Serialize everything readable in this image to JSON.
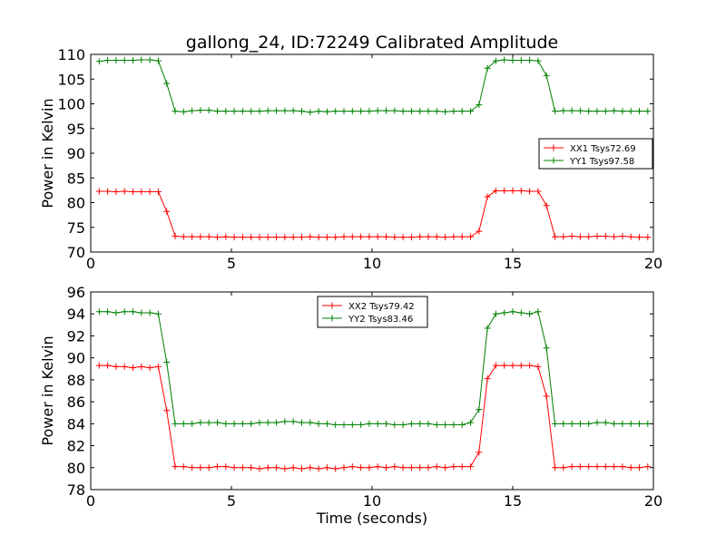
{
  "chart_data": [
    {
      "type": "line",
      "title": "gallong_24, ID:72249 Calibrated Amplitude",
      "xlabel": "",
      "ylabel": "Power in Kelvin",
      "xlim": [
        0,
        20
      ],
      "ylim": [
        70,
        110
      ],
      "xticks": [
        "0",
        "5",
        "10",
        "15",
        "20"
      ],
      "yticks": [
        "70",
        "75",
        "80",
        "85",
        "90",
        "95",
        "100",
        "105",
        "110"
      ],
      "legend_position": "right",
      "x": [
        0.3,
        0.6,
        0.9,
        1.2,
        1.5,
        1.8,
        2.1,
        2.4,
        2.7,
        3.0,
        3.3,
        3.6,
        3.9,
        4.2,
        4.5,
        4.8,
        5.1,
        5.4,
        5.7,
        6.0,
        6.3,
        6.6,
        6.9,
        7.2,
        7.5,
        7.8,
        8.1,
        8.4,
        8.7,
        9.0,
        9.3,
        9.6,
        9.9,
        10.2,
        10.5,
        10.8,
        11.1,
        11.4,
        11.7,
        12.0,
        12.3,
        12.6,
        12.9,
        13.2,
        13.5,
        13.8,
        14.1,
        14.4,
        14.7,
        15.0,
        15.3,
        15.6,
        15.9,
        16.2,
        16.5,
        16.8,
        17.1,
        17.4,
        17.7,
        18.0,
        18.3,
        18.6,
        18.9,
        19.2,
        19.5,
        19.8
      ],
      "series": [
        {
          "name": "XX1 Tsys72.69",
          "color": "#ff0000",
          "values": [
            82.3,
            82.3,
            82.2,
            82.3,
            82.2,
            82.2,
            82.2,
            82.2,
            78.2,
            73.2,
            73.1,
            73.1,
            73.1,
            73.1,
            73.0,
            73.1,
            73.0,
            73.0,
            73.0,
            73.0,
            73.0,
            73.0,
            73.0,
            73.0,
            73.0,
            73.1,
            73.0,
            73.0,
            73.0,
            73.1,
            73.1,
            73.1,
            73.1,
            73.1,
            73.1,
            73.0,
            73.0,
            73.0,
            73.1,
            73.1,
            73.1,
            73.0,
            73.1,
            73.1,
            73.1,
            74.2,
            81.2,
            82.4,
            82.4,
            82.4,
            82.4,
            82.3,
            82.3,
            79.4,
            73.1,
            73.1,
            73.2,
            73.1,
            73.1,
            73.2,
            73.2,
            73.1,
            73.2,
            73.1,
            73.0,
            73.0
          ]
        },
        {
          "name": "YY1 Tsys97.58",
          "color": "#008000",
          "values": [
            108.6,
            108.8,
            108.8,
            108.8,
            108.8,
            108.9,
            108.9,
            108.7,
            104.1,
            98.5,
            98.4,
            98.6,
            98.7,
            98.7,
            98.5,
            98.5,
            98.5,
            98.5,
            98.5,
            98.5,
            98.6,
            98.6,
            98.6,
            98.6,
            98.5,
            98.3,
            98.5,
            98.4,
            98.5,
            98.5,
            98.5,
            98.5,
            98.5,
            98.6,
            98.6,
            98.6,
            98.5,
            98.5,
            98.5,
            98.5,
            98.5,
            98.4,
            98.5,
            98.5,
            98.5,
            99.8,
            107.2,
            108.7,
            108.9,
            108.8,
            108.8,
            108.8,
            108.7,
            105.7,
            98.5,
            98.6,
            98.6,
            98.6,
            98.5,
            98.5,
            98.5,
            98.6,
            98.5,
            98.5,
            98.5,
            98.5
          ]
        }
      ]
    },
    {
      "type": "line",
      "title": "",
      "xlabel": "Time (seconds)",
      "ylabel": "Power in Kelvin",
      "xlim": [
        0,
        20
      ],
      "ylim": [
        78,
        96
      ],
      "xticks": [
        "0",
        "5",
        "10",
        "15",
        "20"
      ],
      "yticks": [
        "78",
        "80",
        "82",
        "84",
        "86",
        "88",
        "90",
        "92",
        "94",
        "96"
      ],
      "legend_position": "top-center",
      "x": [
        0.3,
        0.6,
        0.9,
        1.2,
        1.5,
        1.8,
        2.1,
        2.4,
        2.7,
        3.0,
        3.3,
        3.6,
        3.9,
        4.2,
        4.5,
        4.8,
        5.1,
        5.4,
        5.7,
        6.0,
        6.3,
        6.6,
        6.9,
        7.2,
        7.5,
        7.8,
        8.1,
        8.4,
        8.7,
        9.0,
        9.3,
        9.6,
        9.9,
        10.2,
        10.5,
        10.8,
        11.1,
        11.4,
        11.7,
        12.0,
        12.3,
        12.6,
        12.9,
        13.2,
        13.5,
        13.8,
        14.1,
        14.4,
        14.7,
        15.0,
        15.3,
        15.6,
        15.9,
        16.2,
        16.5,
        16.8,
        17.1,
        17.4,
        17.7,
        18.0,
        18.3,
        18.6,
        18.9,
        19.2,
        19.5,
        19.8
      ],
      "series": [
        {
          "name": "XX2 Tsys79.42",
          "color": "#ff0000",
          "values": [
            89.3,
            89.3,
            89.2,
            89.2,
            89.1,
            89.2,
            89.1,
            89.2,
            85.2,
            80.1,
            80.1,
            80.0,
            80.0,
            80.0,
            80.1,
            80.1,
            80.0,
            80.0,
            80.0,
            79.9,
            80.0,
            80.0,
            79.9,
            80.0,
            79.9,
            80.0,
            79.9,
            80.0,
            79.9,
            80.0,
            80.1,
            80.0,
            80.0,
            80.1,
            80.0,
            80.1,
            80.0,
            80.0,
            80.0,
            80.0,
            80.1,
            80.0,
            80.1,
            80.1,
            80.1,
            81.4,
            88.1,
            89.3,
            89.3,
            89.3,
            89.3,
            89.3,
            89.2,
            86.5,
            80.0,
            80.0,
            80.1,
            80.1,
            80.1,
            80.1,
            80.1,
            80.1,
            80.1,
            80.0,
            80.0,
            80.1
          ]
        },
        {
          "name": "YY2 Tsys83.46",
          "color": "#008000",
          "values": [
            94.2,
            94.2,
            94.1,
            94.2,
            94.2,
            94.1,
            94.1,
            94.0,
            89.6,
            84.0,
            84.0,
            84.0,
            84.1,
            84.1,
            84.1,
            84.0,
            84.0,
            84.0,
            84.0,
            84.1,
            84.1,
            84.1,
            84.2,
            84.2,
            84.1,
            84.1,
            84.0,
            84.0,
            83.9,
            83.9,
            83.9,
            83.9,
            84.0,
            84.0,
            84.0,
            83.9,
            83.9,
            84.0,
            84.0,
            84.0,
            83.9,
            83.9,
            83.9,
            83.9,
            84.1,
            85.3,
            92.7,
            94.0,
            94.1,
            94.2,
            94.1,
            94.0,
            94.2,
            90.9,
            84.0,
            84.0,
            84.0,
            84.0,
            84.0,
            84.1,
            84.1,
            84.0,
            84.0,
            84.0,
            84.0,
            84.0
          ]
        }
      ]
    }
  ]
}
